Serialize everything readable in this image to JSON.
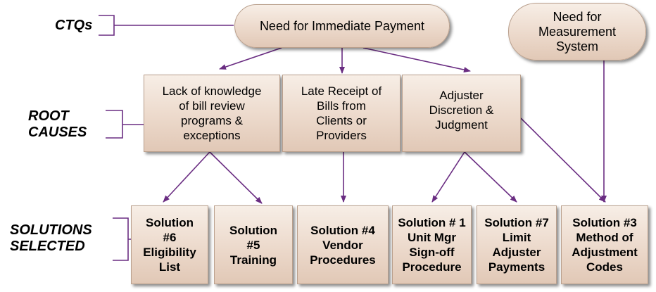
{
  "side_labels": {
    "ctqs": "CTQs",
    "root_causes": "ROOT\nCAUSES",
    "solutions_selected": "SOLUTIONS\nSELECTED"
  },
  "ctqs": {
    "immediate_payment": "Need for Immediate Payment",
    "measurement_system": "Need for\nMeasurement\nSystem"
  },
  "root_causes": {
    "lack_of_knowledge": "Lack of knowledge\nof bill review\nprograms &\nexceptions",
    "late_receipt": "Late Receipt of\nBills from\nClients or\nProviders",
    "adjuster_discretion": "Adjuster\nDiscretion &\nJudgment"
  },
  "solutions": {
    "s6": "Solution\n#6\nEligibility\nList",
    "s5": "Solution\n#5\nTraining",
    "s4": "Solution #4\nVendor\nProcedures",
    "s1": "Solution # 1\nUnit Mgr\nSign-off\nProcedure",
    "s7": "Solution #7\nLimit\nAdjuster\nPayments",
    "s3": "Solution #3\nMethod of\nAdjustment\nCodes"
  },
  "colors": {
    "connector": "#6a2d82",
    "box_fill": "#ecd9cb",
    "box_border": "#b99f8c"
  }
}
